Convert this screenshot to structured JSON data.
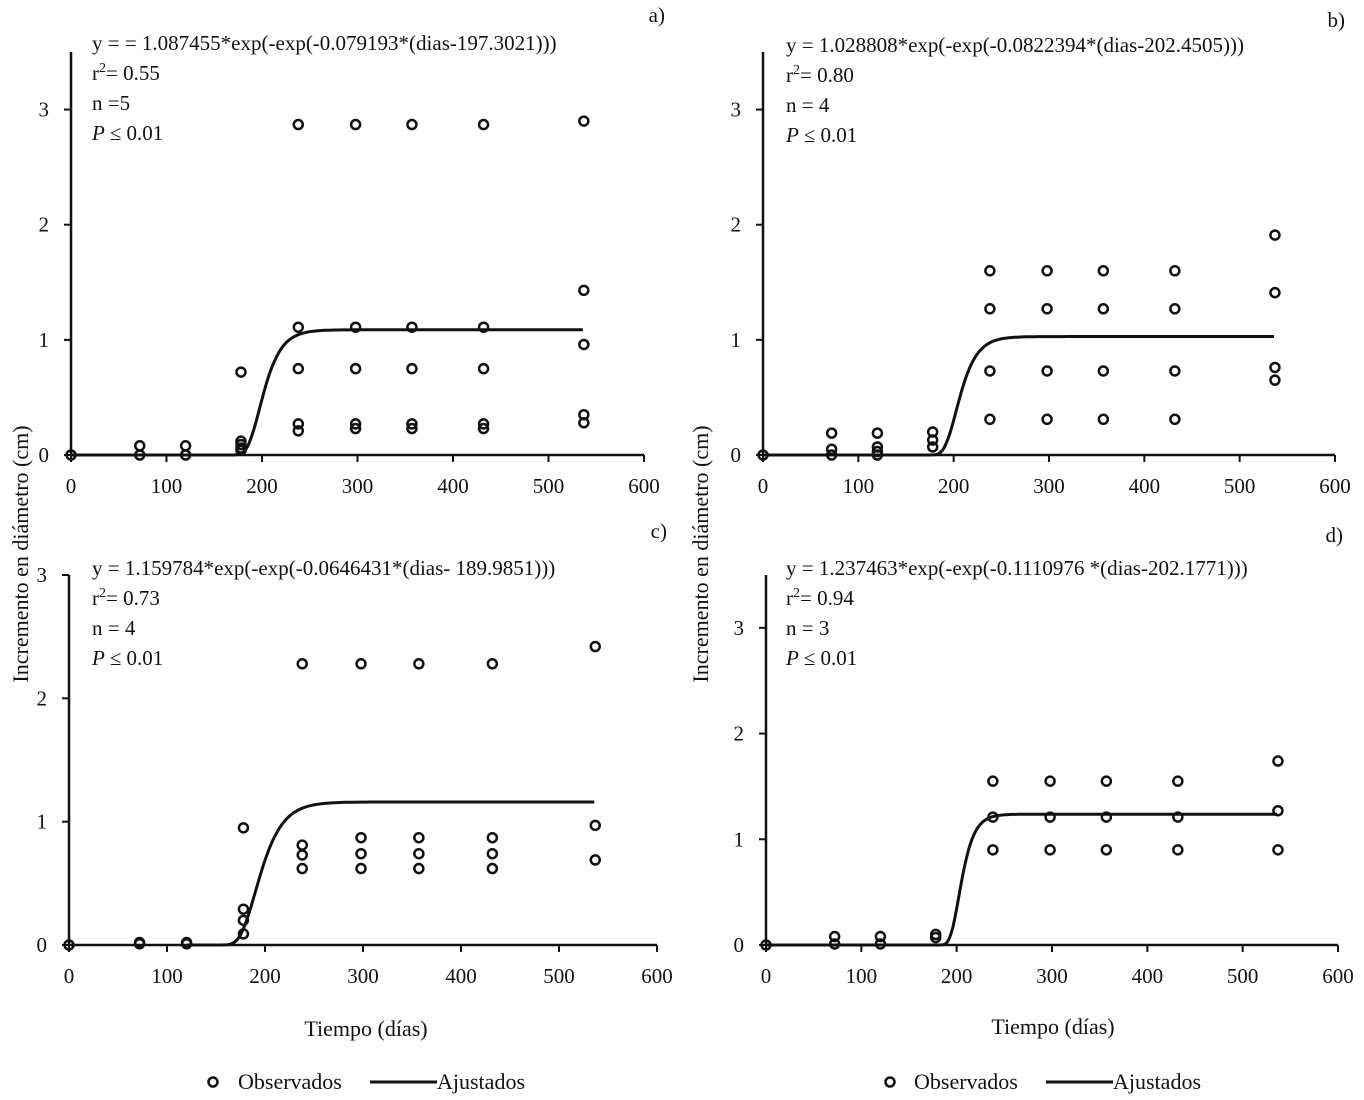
{
  "figure": {
    "ylabel": "Incremento  en  diámetro  (cm)",
    "xlabel": "Tiempo  (días)",
    "legend": {
      "observed_label": "Observados",
      "fitted_label": "Ajustados",
      "placement": "bottom"
    }
  },
  "chart_data": [
    {
      "type": "scatter",
      "panel_label": "a)",
      "equation": "y = = 1.087455*exp(-exp(-0.079193*(dias-197.3021)))",
      "r2_prefix": "r",
      "r2_value": "= 0.55",
      "n_text": "n =5",
      "p_prefix": "P",
      "p_value": "≤ 0.01",
      "xlim": [
        0,
        600
      ],
      "ylim": [
        0,
        3.5
      ],
      "xticks": [
        "0",
        "100",
        "200",
        "300",
        "400",
        "500",
        "600"
      ],
      "yticks": [
        "0",
        "1",
        "2",
        "3"
      ],
      "series": [
        {
          "name": "Observados",
          "x": [
            0,
            72,
            72,
            120,
            120,
            178,
            178,
            178,
            178,
            178,
            238,
            238,
            238,
            238,
            238,
            298,
            298,
            298,
            298,
            298,
            357,
            357,
            357,
            357,
            357,
            432,
            432,
            432,
            432,
            432,
            537,
            537,
            537,
            537,
            537
          ],
          "y": [
            0,
            0.08,
            0,
            0.08,
            0,
            0.72,
            0.12,
            0.09,
            0.06,
            0.04,
            2.87,
            1.11,
            0.75,
            0.27,
            0.21,
            2.87,
            1.11,
            0.75,
            0.27,
            0.23,
            2.87,
            1.11,
            0.75,
            0.27,
            0.23,
            2.87,
            1.11,
            0.75,
            0.27,
            0.23,
            2.9,
            1.43,
            0.96,
            0.35,
            0.28
          ]
        },
        {
          "name": "Ajustados",
          "params": {
            "a": 1.087455,
            "b": 0.079193,
            "c": 197.3021
          },
          "x_range": [
            0,
            537
          ]
        }
      ]
    },
    {
      "type": "scatter",
      "panel_label": "b)",
      "equation": "y = 1.028808*exp(-exp(-0.0822394*(dias-202.4505)))",
      "r2_prefix": "r",
      "r2_value": "= 0.80",
      "n_text": "n = 4",
      "p_prefix": "P",
      "p_value": "≤ 0.01",
      "xlim": [
        0,
        600
      ],
      "ylim": [
        0,
        3.5
      ],
      "xticks": [
        "0",
        "100",
        "200",
        "300",
        "400",
        "500",
        "600"
      ],
      "yticks": [
        "0",
        "1",
        "2",
        "3"
      ],
      "series": [
        {
          "name": "Observados",
          "x": [
            0,
            72,
            72,
            72,
            120,
            120,
            120,
            120,
            178,
            178,
            178,
            238,
            238,
            238,
            238,
            298,
            298,
            298,
            298,
            357,
            357,
            357,
            357,
            432,
            432,
            432,
            432,
            537,
            537,
            537,
            537
          ],
          "y": [
            0,
            0.19,
            0.05,
            0,
            0.19,
            0.07,
            0.03,
            0,
            0.2,
            0.13,
            0.07,
            1.6,
            1.27,
            0.73,
            0.31,
            1.6,
            1.27,
            0.73,
            0.31,
            1.6,
            1.27,
            0.73,
            0.31,
            1.6,
            1.27,
            0.73,
            0.31,
            1.91,
            1.41,
            0.76,
            0.65
          ]
        },
        {
          "name": "Ajustados",
          "params": {
            "a": 1.028808,
            "b": 0.0822394,
            "c": 202.4505
          },
          "x_range": [
            0,
            537
          ]
        }
      ]
    },
    {
      "type": "scatter",
      "panel_label": "c)",
      "equation": "y = 1.159784*exp(-exp(-0.0646431*(dias-  189.9851)))",
      "r2_prefix": "r",
      "r2_value": "= 0.73",
      "n_text": "n = 4",
      "p_prefix": "P",
      "p_value": "≤ 0.01",
      "xlim": [
        0,
        600
      ],
      "ylim": [
        0,
        3
      ],
      "xticks": [
        "0",
        "100",
        "200",
        "300",
        "400",
        "500",
        "600"
      ],
      "yticks": [
        "0",
        "1",
        "2",
        "3"
      ],
      "series": [
        {
          "name": "Observados",
          "x": [
            0,
            72,
            72,
            120,
            120,
            178,
            178,
            178,
            178,
            238,
            238,
            238,
            238,
            298,
            298,
            298,
            298,
            357,
            357,
            357,
            357,
            432,
            432,
            432,
            432,
            537,
            537,
            537
          ],
          "y": [
            0,
            0.02,
            0.01,
            0.02,
            0.01,
            0.95,
            0.29,
            0.2,
            0.09,
            2.28,
            0.81,
            0.73,
            0.62,
            2.28,
            0.87,
            0.74,
            0.62,
            2.28,
            0.87,
            0.74,
            0.62,
            2.28,
            0.87,
            0.74,
            0.62,
            2.42,
            0.97,
            0.69
          ]
        },
        {
          "name": "Ajustados",
          "params": {
            "a": 1.159784,
            "b": 0.0646431,
            "c": 189.9851
          },
          "x_range": [
            120,
            537
          ]
        }
      ]
    },
    {
      "type": "scatter",
      "panel_label": "d)",
      "equation": "y = 1.237463*exp(-exp(-0.1110976  *(dias-202.1771)))",
      "r2_prefix": "r",
      "r2_value": "= 0.94",
      "n_text": "n = 3",
      "p_prefix": "P",
      "p_value": "≤ 0.01",
      "xlim": [
        0,
        600
      ],
      "ylim": [
        0,
        3.5
      ],
      "xticks": [
        "0",
        "100",
        "200",
        "300",
        "400",
        "500",
        "600"
      ],
      "yticks": [
        "0",
        "1",
        "2",
        "3"
      ],
      "series": [
        {
          "name": "Observados",
          "x": [
            0,
            72,
            72,
            120,
            120,
            178,
            178,
            238,
            238,
            238,
            298,
            298,
            298,
            357,
            357,
            357,
            432,
            432,
            432,
            537,
            537,
            537
          ],
          "y": [
            0,
            0.08,
            0.01,
            0.08,
            0.01,
            0.1,
            0.07,
            1.55,
            1.21,
            0.9,
            1.55,
            1.21,
            0.9,
            1.55,
            1.21,
            0.9,
            1.55,
            1.21,
            0.9,
            1.74,
            1.27,
            0.9
          ]
        },
        {
          "name": "Ajustados",
          "params": {
            "a": 1.237463,
            "b": 0.1110976,
            "c": 202.1771
          },
          "x_range": [
            0,
            537
          ]
        }
      ]
    }
  ]
}
